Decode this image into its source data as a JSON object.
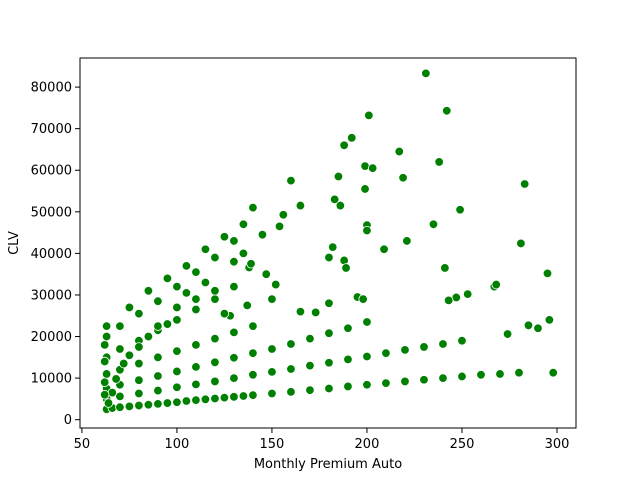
{
  "chart_data": {
    "type": "scatter",
    "xlabel": "Monthly Premium Auto",
    "ylabel": "CLV",
    "xlim": [
      49,
      310
    ],
    "ylim": [
      -2000,
      87000
    ],
    "xticks": [
      50,
      100,
      150,
      200,
      250,
      300
    ],
    "yticks": [
      0,
      10000,
      20000,
      30000,
      40000,
      50000,
      60000,
      70000,
      80000
    ],
    "xtick_labels": [
      "50",
      "100",
      "150",
      "200",
      "250",
      "300"
    ],
    "ytick_labels": [
      "0",
      "10000",
      "20000",
      "30000",
      "40000",
      "50000",
      "60000",
      "70000",
      "80000"
    ],
    "grid": false,
    "marker_color": "#008000",
    "marker_edge_color": "#ffffff",
    "series": [
      {
        "points": [
          [
            63,
            2500
          ],
          [
            66,
            2800
          ],
          [
            70,
            3000
          ],
          [
            75,
            3200
          ],
          [
            80,
            3400
          ],
          [
            85,
            3600
          ],
          [
            90,
            3800
          ],
          [
            95,
            4000
          ],
          [
            100,
            4200
          ],
          [
            105,
            4500
          ],
          [
            110,
            4700
          ],
          [
            115,
            4900
          ],
          [
            120,
            5100
          ],
          [
            125,
            5300
          ],
          [
            130,
            5500
          ],
          [
            135,
            5700
          ],
          [
            140,
            5900
          ],
          [
            150,
            6300
          ],
          [
            160,
            6700
          ],
          [
            170,
            7100
          ],
          [
            180,
            7500
          ],
          [
            190,
            8000
          ],
          [
            200,
            8400
          ],
          [
            210,
            8800
          ],
          [
            220,
            9200
          ],
          [
            230,
            9600
          ],
          [
            240,
            10000
          ],
          [
            250,
            10400
          ],
          [
            260,
            10800
          ],
          [
            270,
            11000
          ],
          [
            280,
            11300
          ],
          [
            298,
            11300
          ],
          [
            63,
            5000
          ],
          [
            70,
            5600
          ],
          [
            80,
            6300
          ],
          [
            90,
            7000
          ],
          [
            100,
            7800
          ],
          [
            110,
            8500
          ],
          [
            120,
            9200
          ],
          [
            130,
            10000
          ],
          [
            140,
            10800
          ],
          [
            150,
            11500
          ],
          [
            160,
            12200
          ],
          [
            170,
            13000
          ],
          [
            180,
            13700
          ],
          [
            190,
            14500
          ],
          [
            200,
            15200
          ],
          [
            210,
            16000
          ],
          [
            220,
            16800
          ],
          [
            230,
            17500
          ],
          [
            240,
            18200
          ],
          [
            250,
            19000
          ],
          [
            63,
            7500
          ],
          [
            70,
            8400
          ],
          [
            80,
            9500
          ],
          [
            90,
            10500
          ],
          [
            100,
            11600
          ],
          [
            110,
            12700
          ],
          [
            120,
            13800
          ],
          [
            130,
            14900
          ],
          [
            140,
            16000
          ],
          [
            150,
            17000
          ],
          [
            160,
            18200
          ],
          [
            170,
            19500
          ],
          [
            180,
            20800
          ],
          [
            190,
            22000
          ],
          [
            200,
            23500
          ],
          [
            63,
            11000
          ],
          [
            70,
            12000
          ],
          [
            80,
            13500
          ],
          [
            90,
            15000
          ],
          [
            100,
            16500
          ],
          [
            110,
            18000
          ],
          [
            120,
            19500
          ],
          [
            130,
            21000
          ],
          [
            140,
            22500
          ],
          [
            63,
            15000
          ],
          [
            70,
            17000
          ],
          [
            80,
            19000
          ],
          [
            90,
            21500
          ],
          [
            100,
            24000
          ],
          [
            110,
            26500
          ],
          [
            120,
            29000
          ],
          [
            130,
            32000
          ],
          [
            63,
            20000
          ],
          [
            70,
            22500
          ],
          [
            80,
            25500
          ],
          [
            90,
            28500
          ],
          [
            100,
            32000
          ],
          [
            110,
            35500
          ],
          [
            120,
            39000
          ],
          [
            130,
            43000
          ],
          [
            140,
            51000
          ],
          [
            63,
            22500
          ],
          [
            75,
            27000
          ],
          [
            85,
            31000
          ],
          [
            95,
            34000
          ],
          [
            105,
            37000
          ],
          [
            115,
            41000
          ],
          [
            125,
            44000
          ],
          [
            135,
            47000
          ],
          [
            160,
            57500
          ],
          [
            165,
            51500
          ],
          [
            185,
            58500
          ],
          [
            186,
            51500
          ],
          [
            188,
            66000
          ],
          [
            192,
            67800
          ],
          [
            199,
            61000
          ],
          [
            199,
            55500
          ],
          [
            201,
            73200
          ],
          [
            203,
            60500
          ],
          [
            217,
            64500
          ],
          [
            219,
            58200
          ],
          [
            231,
            83300
          ],
          [
            238,
            62000
          ],
          [
            242,
            74300
          ],
          [
            249,
            50500
          ],
          [
            283,
            56700
          ],
          [
            281,
            42400
          ],
          [
            295,
            35200
          ],
          [
            296,
            24000
          ],
          [
            274,
            20600
          ],
          [
            285,
            22700
          ],
          [
            290,
            22000
          ],
          [
            267,
            32000
          ],
          [
            268,
            32500
          ],
          [
            253,
            30200
          ],
          [
            247,
            29400
          ],
          [
            243,
            28700
          ],
          [
            241,
            36500
          ],
          [
            235,
            47000
          ],
          [
            221,
            43000
          ],
          [
            209,
            41000
          ],
          [
            200,
            46800
          ],
          [
            200,
            45500
          ],
          [
            188,
            38300
          ],
          [
            189,
            36500
          ],
          [
            182,
            41500
          ],
          [
            180,
            39000
          ],
          [
            183,
            53000
          ],
          [
            180,
            28000
          ],
          [
            195,
            29500
          ],
          [
            198,
            29000
          ],
          [
            173,
            25800
          ],
          [
            165,
            26000
          ],
          [
            147,
            35000
          ],
          [
            152,
            32500
          ],
          [
            150,
            29000
          ],
          [
            154,
            46500
          ],
          [
            156,
            49300
          ],
          [
            145,
            44500
          ],
          [
            137,
            27500
          ],
          [
            138,
            36600
          ],
          [
            139,
            37500
          ],
          [
            128,
            25000
          ],
          [
            125,
            25500
          ],
          [
            120,
            31000
          ],
          [
            130,
            38000
          ],
          [
            135,
            40000
          ],
          [
            115,
            33000
          ],
          [
            110,
            29000
          ],
          [
            105,
            30500
          ],
          [
            100,
            27000
          ],
          [
            95,
            23000
          ],
          [
            90,
            22500
          ],
          [
            85,
            20000
          ],
          [
            80,
            17500
          ],
          [
            75,
            15500
          ],
          [
            72,
            13500
          ],
          [
            68,
            9800
          ],
          [
            66,
            6500
          ],
          [
            64,
            4000
          ],
          [
            62,
            18000
          ],
          [
            62,
            14000
          ],
          [
            62,
            9000
          ],
          [
            62,
            6000
          ]
        ]
      }
    ]
  }
}
